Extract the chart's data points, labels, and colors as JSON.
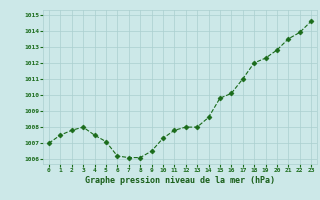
{
  "x": [
    0,
    1,
    2,
    3,
    4,
    5,
    6,
    7,
    8,
    9,
    10,
    11,
    12,
    13,
    14,
    15,
    16,
    17,
    18,
    19,
    20,
    21,
    22,
    23
  ],
  "y": [
    1007.0,
    1007.5,
    1007.8,
    1008.0,
    1007.5,
    1007.1,
    1006.2,
    1006.1,
    1006.1,
    1006.5,
    1007.3,
    1007.8,
    1008.0,
    1008.0,
    1008.6,
    1009.8,
    1010.1,
    1011.0,
    1012.0,
    1012.3,
    1012.8,
    1013.5,
    1013.9,
    1014.6
  ],
  "line_color": "#1a6b1a",
  "marker_color": "#1a6b1a",
  "bg_color": "#cce8e8",
  "grid_color": "#aacfcf",
  "xlabel": "Graphe pression niveau de la mer (hPa)",
  "xlabel_color": "#1a5f1a",
  "ylabel_ticks": [
    1006,
    1007,
    1008,
    1009,
    1010,
    1011,
    1012,
    1013,
    1014,
    1015
  ],
  "ylim": [
    1005.7,
    1015.3
  ],
  "xlim": [
    -0.5,
    23.5
  ],
  "tick_color": "#1a6b1a"
}
